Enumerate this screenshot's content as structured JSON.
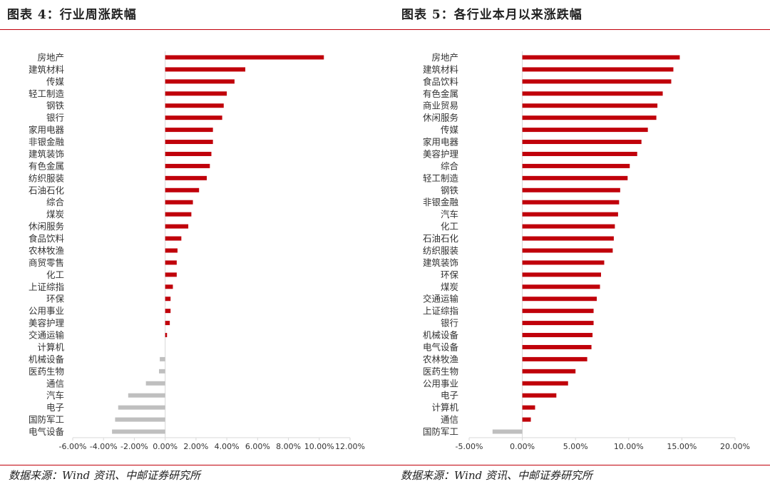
{
  "left_title": "图表 4：行业周涨跌幅",
  "right_title": "图表 5：各行业本月以来涨跌幅",
  "left_source": "数据来源：Wind 资讯、中邮证券研究所",
  "right_source": "数据来源：Wind 资讯、中邮证券研究所",
  "colors": {
    "positive": "#c0000a",
    "negative": "#bfbfbf",
    "axis": "#d9d9d9",
    "rule": "#c0000a"
  },
  "chart_data": [
    {
      "type": "bar",
      "orientation": "horizontal",
      "title": "图表 4：行业周涨跌幅",
      "categories": [
        "房地产",
        "建筑材料",
        "传媒",
        "轻工制造",
        "钢铁",
        "银行",
        "家用电器",
        "非银金融",
        "建筑装饰",
        "有色金属",
        "纺织服装",
        "石油石化",
        "综合",
        "煤炭",
        "休闲服务",
        "食品饮料",
        "农林牧渔",
        "商贸零售",
        "化工",
        "上证综指",
        "环保",
        "公用事业",
        "美容护理",
        "交通运输",
        "计算机",
        "机械设备",
        "医药生物",
        "通信",
        "汽车",
        "电子",
        "国防军工",
        "电气设备"
      ],
      "values": [
        10.3,
        5.2,
        4.5,
        4.0,
        3.8,
        3.7,
        3.1,
        3.1,
        3.0,
        2.9,
        2.7,
        2.2,
        1.8,
        1.7,
        1.5,
        1.05,
        0.8,
        0.75,
        0.75,
        0.5,
        0.35,
        0.35,
        0.3,
        0.12,
        0.0,
        -0.35,
        -0.4,
        -1.25,
        -2.4,
        -3.05,
        -3.25,
        -3.45
      ],
      "xlim": [
        -6,
        12
      ],
      "xticks": [
        -6,
        -4,
        -2,
        0,
        2,
        4,
        6,
        8,
        10,
        12
      ],
      "xtick_labels": [
        "-6.00%",
        "-4.00%",
        "-2.00%",
        "0.00%",
        "2.00%",
        "4.00%",
        "6.00%",
        "8.00%",
        "10.00%",
        "12.00%"
      ],
      "unit": "%"
    },
    {
      "type": "bar",
      "orientation": "horizontal",
      "title": "图表 5：各行业本月以来涨跌幅",
      "categories": [
        "房地产",
        "建筑材料",
        "食品饮料",
        "有色金属",
        "商业贸易",
        "休闲服务",
        "传媒",
        "家用电器",
        "美容护理",
        "综合",
        "轻工制造",
        "钢铁",
        "非银金融",
        "汽车",
        "化工",
        "石油石化",
        "纺织服装",
        "建筑装饰",
        "环保",
        "煤炭",
        "交通运输",
        "上证综指",
        "银行",
        "机械设备",
        "电气设备",
        "农林牧渔",
        "医药生物",
        "公用事业",
        "电子",
        "计算机",
        "通信",
        "国防军工"
      ],
      "values": [
        14.8,
        14.2,
        14.0,
        13.2,
        12.7,
        12.6,
        11.8,
        11.2,
        10.8,
        10.1,
        9.9,
        9.2,
        9.1,
        9.0,
        8.7,
        8.6,
        8.5,
        7.7,
        7.4,
        7.3,
        7.0,
        6.7,
        6.7,
        6.6,
        6.5,
        6.1,
        5.0,
        4.3,
        3.2,
        1.2,
        0.8,
        -2.8
      ],
      "xlim": [
        -5,
        20
      ],
      "xticks": [
        -5,
        0,
        5,
        10,
        15,
        20
      ],
      "xtick_labels": [
        "-5.00%",
        "0.00%",
        "5.00%",
        "10.00%",
        "15.00%",
        "20.00%"
      ],
      "unit": "%"
    }
  ]
}
